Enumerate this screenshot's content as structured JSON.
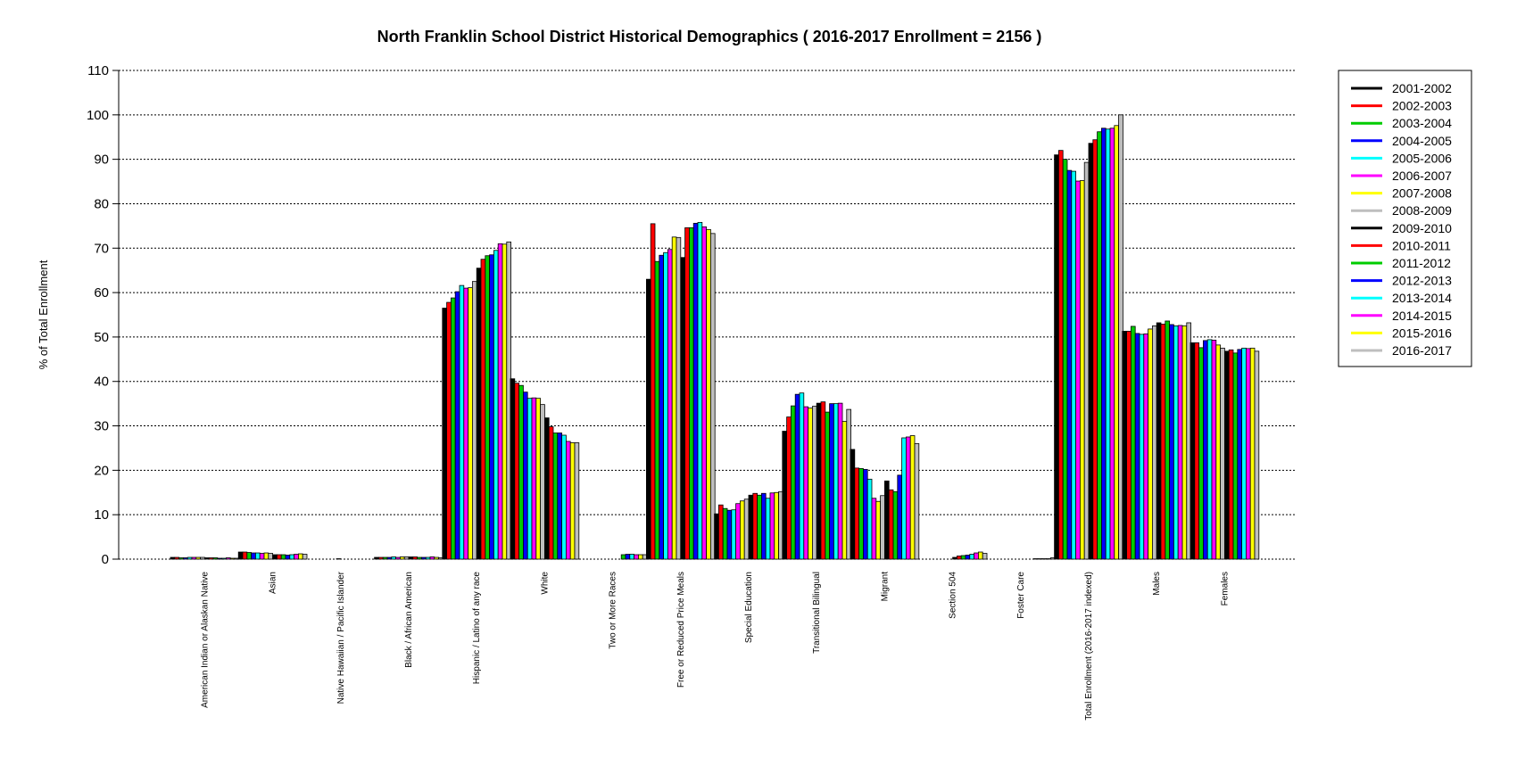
{
  "chart_data": {
    "type": "bar",
    "title": "North Franklin School District Historical Demographics  ( 2016-2017 Enrollment =  2156 )",
    "xlabel": "",
    "ylabel": "% of Total Enrollment",
    "ylim": [
      0,
      110
    ],
    "yticks": [
      0,
      10,
      20,
      30,
      40,
      50,
      60,
      70,
      80,
      90,
      100,
      110
    ],
    "grid": "horizontal dotted",
    "legend_position": "right",
    "categories": [
      "American Indian or Alaskan Native",
      "Asian",
      "Native Hawaiian / Pacific Islander",
      "Black / African American",
      "Hispanic / Latino of any race",
      "White",
      "Two or More Races",
      "Free or Reduced Price Meals",
      "Special Education",
      "Transitional Bilingual",
      "Migrant",
      "Section 504",
      "Foster Care",
      "Total Enrollment (2016-2017 indexed)",
      "Males",
      "Females"
    ],
    "series": [
      {
        "name": "2001-2002",
        "color": "#000000",
        "values": [
          0.4,
          1.6,
          0.0,
          0.4,
          56.5,
          40.6,
          0.0,
          63.0,
          10.2,
          28.8,
          24.7,
          0.0,
          0.0,
          91.0,
          51.3,
          48.7
        ]
      },
      {
        "name": "2002-2003",
        "color": "#FF0000",
        "values": [
          0.4,
          1.6,
          0.0,
          0.4,
          57.8,
          39.6,
          0.0,
          75.5,
          12.2,
          32.0,
          20.5,
          0.0,
          0.0,
          92.0,
          51.3,
          48.7
        ]
      },
      {
        "name": "2003-2004",
        "color": "#00CC00",
        "values": [
          0.3,
          1.5,
          0.0,
          0.4,
          58.8,
          39.1,
          0.0,
          67.0,
          11.4,
          34.5,
          20.4,
          0.0,
          0.0,
          90.0,
          52.4,
          47.6
        ]
      },
      {
        "name": "2004-2005",
        "color": "#0000FF",
        "values": [
          0.3,
          1.4,
          0.0,
          0.4,
          60.2,
          37.6,
          0.0,
          68.4,
          11.0,
          37.1,
          20.2,
          0.0,
          0.0,
          87.5,
          50.8,
          49.2
        ]
      },
      {
        "name": "2005-2006",
        "color": "#00FFFF",
        "values": [
          0.4,
          1.4,
          0.0,
          0.5,
          61.6,
          36.2,
          0.0,
          69.0,
          11.1,
          37.4,
          18.0,
          0.0,
          0.0,
          87.3,
          50.6,
          49.4
        ]
      },
      {
        "name": "2006-2007",
        "color": "#FF00FF",
        "values": [
          0.4,
          1.3,
          0.0,
          0.4,
          61.0,
          36.3,
          0.0,
          69.7,
          12.5,
          34.3,
          13.7,
          0.0,
          0.0,
          85.1,
          50.7,
          49.3
        ]
      },
      {
        "name": "2007-2008",
        "color": "#FFFF00",
        "values": [
          0.4,
          1.4,
          0.0,
          0.5,
          61.1,
          36.2,
          0.0,
          72.5,
          13.1,
          34.0,
          13.0,
          0.0,
          0.0,
          85.2,
          51.8,
          48.2
        ]
      },
      {
        "name": "2008-2009",
        "color": "#BEBEBE",
        "values": [
          0.4,
          1.3,
          0.1,
          0.5,
          62.5,
          34.8,
          0.0,
          72.4,
          13.5,
          34.4,
          14.3,
          0.0,
          0.0,
          89.3,
          52.5,
          47.5
        ]
      },
      {
        "name": "2009-2010",
        "color": "#000000",
        "values": [
          0.3,
          1.0,
          0.0,
          0.5,
          65.5,
          31.8,
          0.0,
          67.9,
          14.4,
          35.1,
          17.6,
          0.4,
          0.0,
          93.6,
          53.2,
          46.8
        ]
      },
      {
        "name": "2010-2011",
        "color": "#FF0000",
        "values": [
          0.3,
          1.0,
          0.0,
          0.5,
          67.5,
          29.8,
          0.0,
          74.6,
          14.8,
          35.4,
          15.6,
          0.7,
          0.0,
          94.4,
          52.9,
          47.1
        ]
      },
      {
        "name": "2011-2012",
        "color": "#00CC00",
        "values": [
          0.3,
          1.0,
          0.0,
          0.4,
          68.3,
          28.4,
          1.0,
          74.6,
          14.4,
          33.1,
          15.2,
          0.8,
          0.0,
          96.2,
          53.6,
          46.4
        ]
      },
      {
        "name": "2012-2013",
        "color": "#0000FF",
        "values": [
          0.2,
          0.9,
          0.0,
          0.4,
          68.5,
          28.4,
          1.1,
          75.6,
          14.8,
          35.0,
          18.9,
          0.9,
          0.1,
          97.0,
          52.8,
          47.2
        ]
      },
      {
        "name": "2013-2014",
        "color": "#00FFFF",
        "values": [
          0.2,
          1.0,
          0.0,
          0.4,
          69.5,
          27.9,
          1.1,
          75.8,
          13.7,
          35.0,
          27.3,
          1.1,
          0.1,
          96.8,
          52.5,
          47.5
        ]
      },
      {
        "name": "2014-2015",
        "color": "#FF00FF",
        "values": [
          0.3,
          1.1,
          0.0,
          0.5,
          71.0,
          26.5,
          1.0,
          74.8,
          14.9,
          35.1,
          27.5,
          1.4,
          0.1,
          97.0,
          52.6,
          47.4
        ]
      },
      {
        "name": "2015-2016",
        "color": "#FFFF00",
        "values": [
          0.2,
          1.2,
          0.0,
          0.4,
          70.9,
          26.2,
          1.0,
          74.2,
          15.0,
          31.0,
          27.8,
          1.6,
          0.1,
          97.6,
          52.5,
          47.5
        ]
      },
      {
        "name": "2016-2017",
        "color": "#BEBEBE",
        "values": [
          0.2,
          1.1,
          0.0,
          0.3,
          71.4,
          26.2,
          1.0,
          73.3,
          15.2,
          33.7,
          26.0,
          1.3,
          0.3,
          100.0,
          53.2,
          46.8
        ]
      }
    ]
  }
}
